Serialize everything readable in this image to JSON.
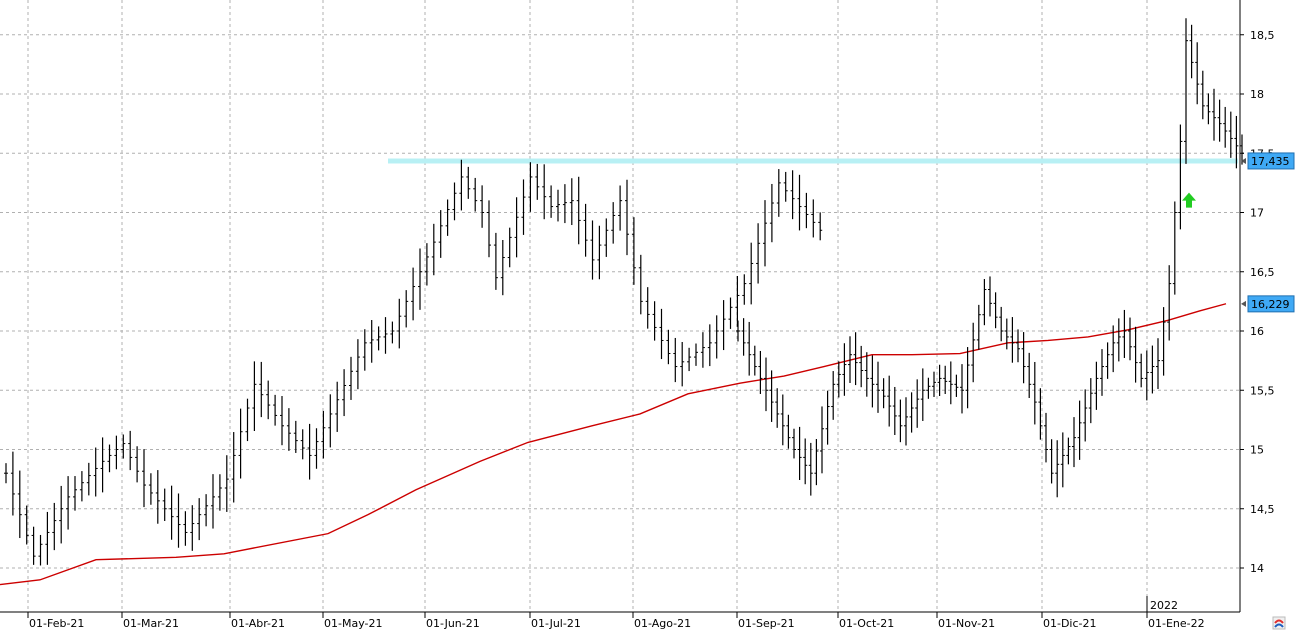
{
  "chart_data": {
    "type": "ohlc",
    "title": "",
    "ylim": [
      13.8,
      18.8
    ],
    "y_ticks": [
      "14",
      "14,5",
      "15",
      "15,5",
      "16",
      "16,5",
      "17",
      "17,5",
      "18",
      "18,5"
    ],
    "y_tick_values": [
      14,
      14.5,
      15,
      15.5,
      16,
      16.5,
      17,
      17.5,
      18,
      18.5
    ],
    "x_tick_labels": [
      "01-Feb-21",
      "01-Mar-21",
      "01-Abr-21",
      "01-May-21",
      "01-Jun-21",
      "01-Jul-21",
      "01-Ago-21",
      "01-Sep-21",
      "01-Oct-21",
      "01-Nov-21",
      "01-Dic-21",
      "01-Ene-22"
    ],
    "year_marker": "2022",
    "grid": true,
    "colors": {
      "bars": "#000000",
      "moving_average": "#cc0000",
      "support_line": "#b8f0f4",
      "price_tag_bg": "#3fa9f5",
      "arrow": "#22cc22",
      "grid": "#b0b0b0"
    },
    "series": [
      {
        "kind": "ohlc",
        "anchors": [
          [
            0,
            14.8
          ],
          [
            8,
            14.1
          ],
          [
            18,
            14.6
          ],
          [
            28,
            14.9
          ],
          [
            34,
            15.05
          ],
          [
            40,
            14.7
          ],
          [
            52,
            14.3
          ],
          [
            64,
            14.75
          ],
          [
            72,
            15.55
          ],
          [
            80,
            15.2
          ],
          [
            88,
            14.95
          ],
          [
            94,
            15.3
          ],
          [
            104,
            15.9
          ],
          [
            112,
            16.0
          ],
          [
            124,
            16.75
          ],
          [
            132,
            17.3
          ],
          [
            138,
            17.0
          ],
          [
            142,
            16.45
          ],
          [
            152,
            17.3
          ],
          [
            158,
            17.05
          ],
          [
            164,
            17.1
          ],
          [
            170,
            16.6
          ],
          [
            178,
            17.1
          ],
          [
            184,
            16.25
          ],
          [
            194,
            15.7
          ],
          [
            204,
            15.9
          ],
          [
            214,
            16.4
          ],
          [
            224,
            17.25
          ],
          [
            236,
            16.85
          ]
        ]
      },
      {
        "kind": "ohlc",
        "anchors": [
          [
            0,
            16.0
          ],
          [
            8,
            15.6
          ],
          [
            20,
            15.0
          ],
          [
            26,
            14.8
          ],
          [
            34,
            15.55
          ],
          [
            40,
            15.8
          ],
          [
            46,
            15.6
          ],
          [
            52,
            15.45
          ],
          [
            58,
            15.2
          ],
          [
            66,
            15.5
          ],
          [
            72,
            15.6
          ],
          [
            80,
            15.5
          ],
          [
            88,
            16.35
          ],
          [
            94,
            16.0
          ],
          [
            100,
            15.85
          ],
          [
            106,
            15.4
          ],
          [
            112,
            14.8
          ],
          [
            120,
            15.1
          ],
          [
            128,
            15.6
          ],
          [
            134,
            15.9
          ],
          [
            138,
            16.0
          ],
          [
            144,
            15.6
          ],
          [
            150,
            15.75
          ],
          [
            154,
            16.4
          ],
          [
            158,
            17.6
          ],
          [
            160,
            18.45
          ],
          [
            166,
            17.9
          ],
          [
            172,
            17.75
          ],
          [
            180,
            17.5
          ]
        ]
      },
      {
        "name": "",
        "kind": "moving_average",
        "anchors": [
          [
            0,
            13.86
          ],
          [
            40,
            13.9
          ],
          [
            96,
            14.07
          ],
          [
            176,
            14.09
          ],
          [
            224,
            14.12
          ],
          [
            328,
            14.29
          ],
          [
            368,
            14.45
          ],
          [
            416,
            14.66
          ],
          [
            480,
            14.9
          ],
          [
            528,
            15.06
          ],
          [
            592,
            15.2
          ],
          [
            640,
            15.3
          ],
          [
            688,
            15.47
          ],
          [
            740,
            15.56
          ],
          [
            784,
            15.62
          ],
          [
            824,
            15.7
          ],
          [
            872,
            15.8
          ],
          [
            912,
            15.8
          ],
          [
            960,
            15.81
          ],
          [
            1008,
            15.9
          ],
          [
            1048,
            15.92
          ],
          [
            1088,
            15.95
          ],
          [
            1128,
            16.01
          ],
          [
            1168,
            16.09
          ],
          [
            1200,
            16.17
          ],
          [
            1226,
            16.23
          ]
        ]
      }
    ],
    "horizontal_line": {
      "value": 17.435
    },
    "price_tags": [
      {
        "label": "17,435",
        "value": 17.435
      },
      {
        "label": "16,229",
        "value": 16.229
      }
    ],
    "arrow": {
      "direction": "up",
      "value": 17.1
    }
  }
}
